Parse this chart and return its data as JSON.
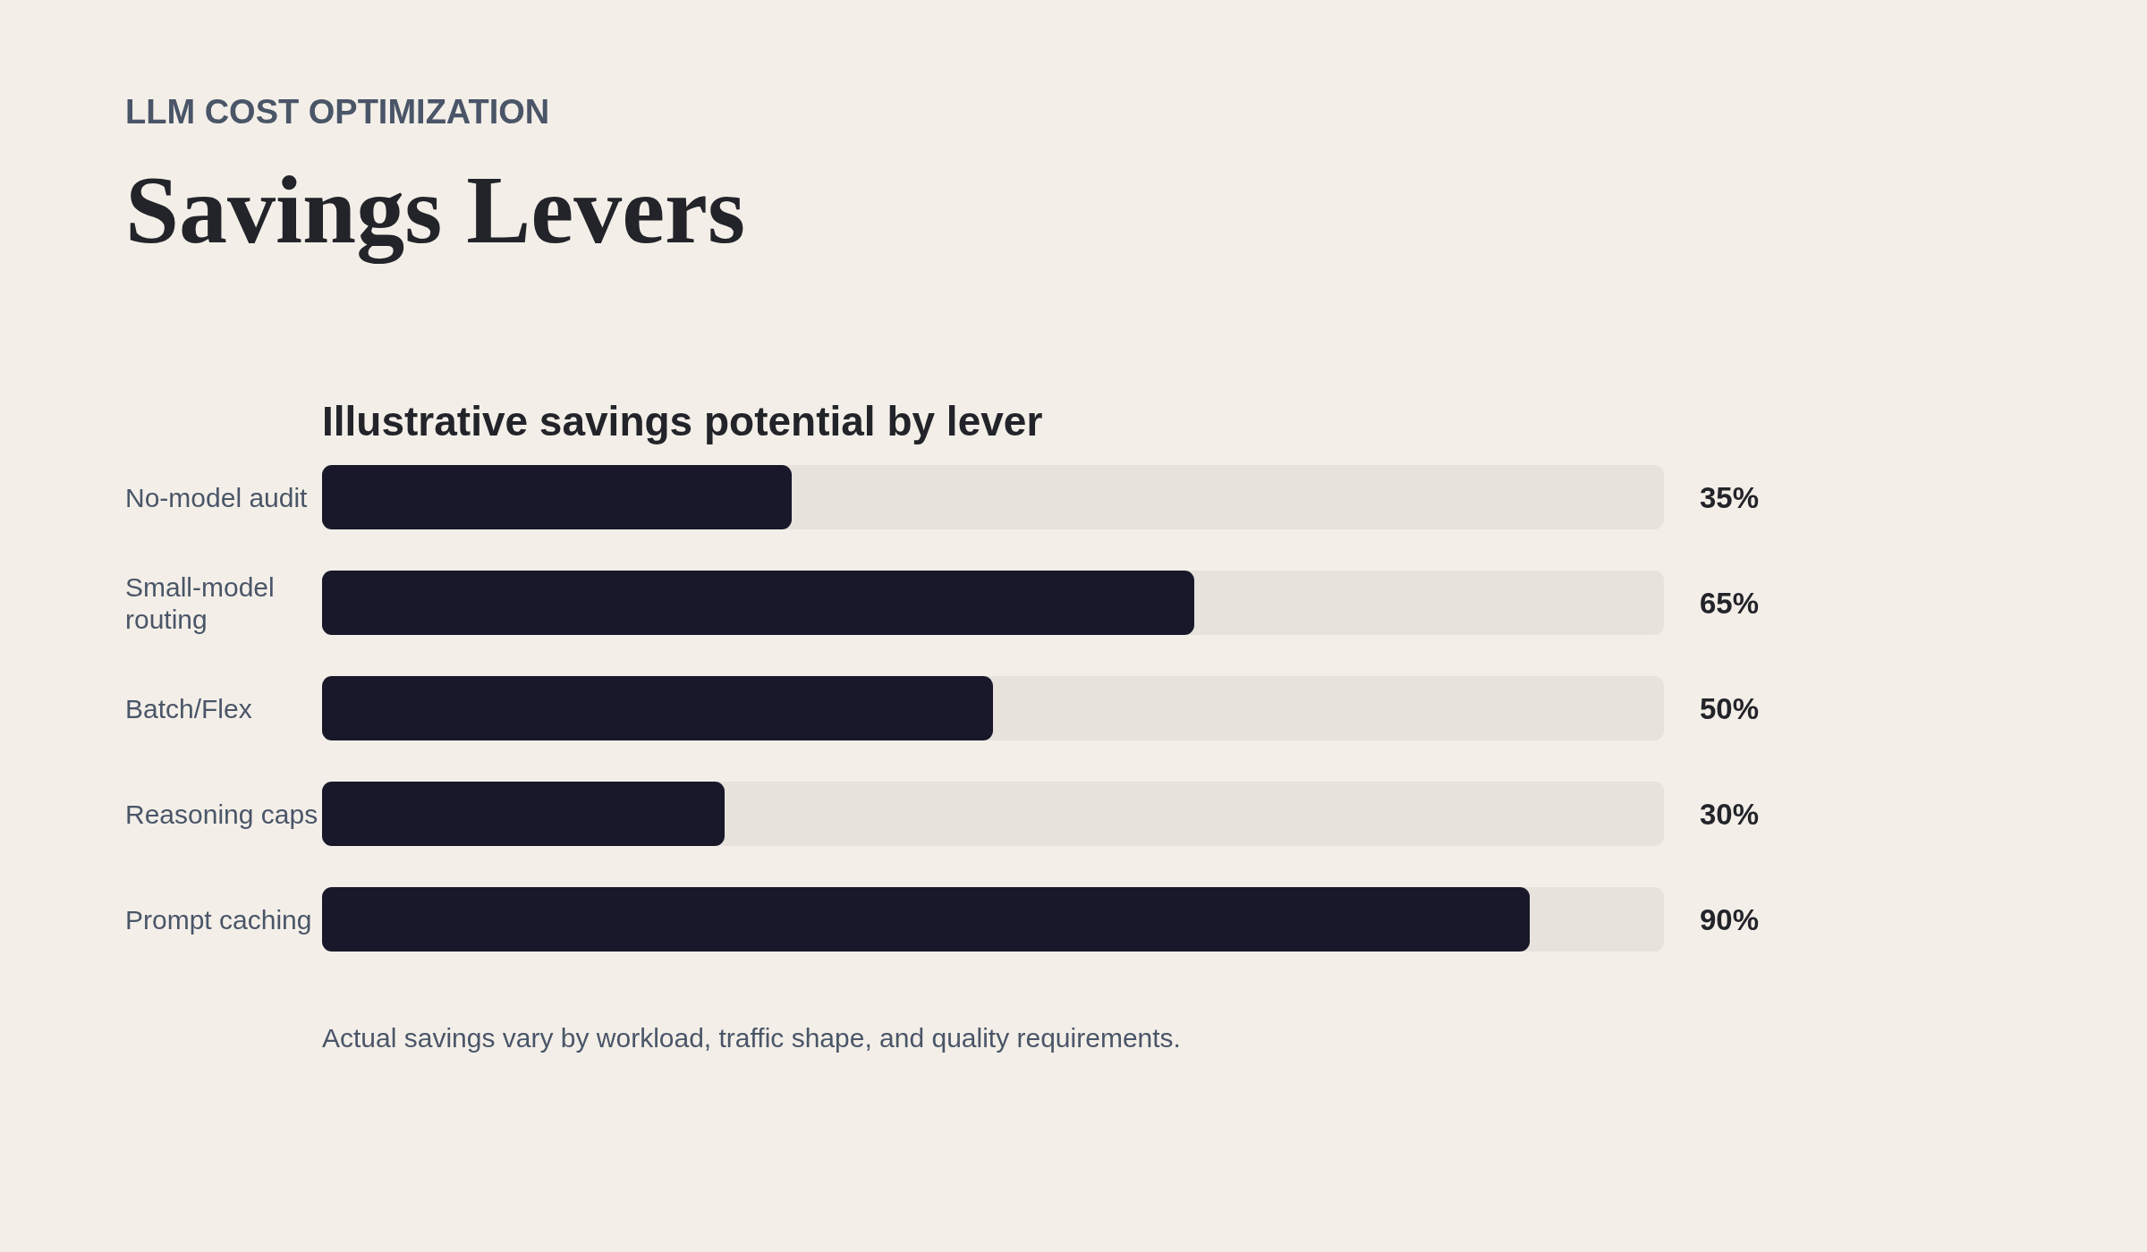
{
  "chart_data": {
    "type": "bar",
    "orientation": "horizontal",
    "title": "Savings Levers",
    "subtitle": "Illustrative savings potential by lever",
    "annotations": [
      "LLM COST OPTIMIZATION",
      "Actual savings vary by workload, traffic shape, and quality requirements."
    ],
    "categories": [
      "No-model audit",
      "Small-model routing",
      "Batch/Flex",
      "Reasoning caps",
      "Prompt caching"
    ],
    "values": [
      35,
      65,
      50,
      30,
      90
    ],
    "value_labels": [
      "35%",
      "65%",
      "50%",
      "30%",
      "90%"
    ],
    "color": "#18182a",
    "xlim": [
      0,
      100
    ],
    "tick_labels": "y"
  }
}
